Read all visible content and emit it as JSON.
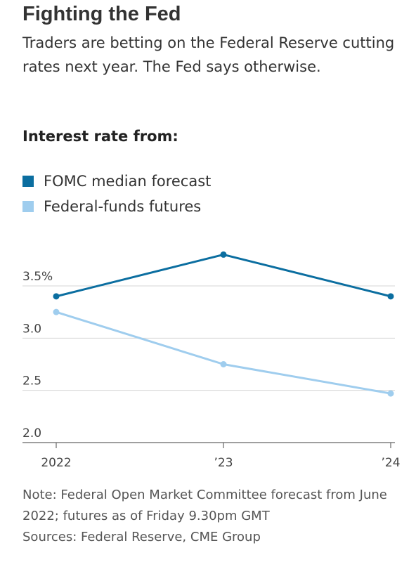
{
  "header": {
    "title": "Fighting the Fed",
    "subtitle": "Traders are betting on the Federal Reserve cutting rates next year. The Fed says otherwise.",
    "section_title": "Interest rate from:"
  },
  "legend": [
    {
      "label": "FOMC median forecast",
      "color": "#0b6ea0"
    },
    {
      "label": "Federal-funds futures",
      "color": "#9fcdee"
    }
  ],
  "footer": {
    "note": "Note: Federal Open Market Committee forecast from June 2022; futures as of Friday 9.30pm GMT",
    "sources": "Sources: Federal Reserve, CME Group"
  },
  "chart_data": {
    "type": "line",
    "categories": [
      "2022",
      "’23",
      "’24"
    ],
    "y_ticks": [
      "3.5%",
      "3.0",
      "2.5",
      "2.0"
    ],
    "y_tick_values": [
      3.5,
      3.0,
      2.5,
      2.0
    ],
    "ylim": [
      2.0,
      3.5
    ],
    "series": [
      {
        "name": "FOMC median forecast",
        "color": "#0b6ea0",
        "values": [
          3.4,
          3.8,
          3.4
        ]
      },
      {
        "name": "Federal-funds futures",
        "color": "#9fcdee",
        "values": [
          3.25,
          2.75,
          2.47
        ]
      }
    ],
    "grid": true,
    "legend_position": "top-left"
  }
}
